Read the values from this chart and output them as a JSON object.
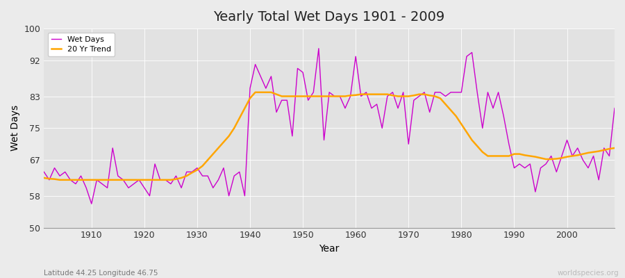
{
  "title": "Yearly Total Wet Days 1901 - 2009",
  "xlabel": "Year",
  "ylabel": "Wet Days",
  "subtitle_left": "Latitude 44.25 Longitude 46.75",
  "watermark": "worldspecies.org",
  "ylim": [
    50,
    100
  ],
  "yticks": [
    50,
    58,
    67,
    75,
    83,
    92,
    100
  ],
  "line_color": "#cc00cc",
  "trend_color": "#FFA500",
  "fig_bg_color": "#f0f0f0",
  "plot_bg_color": "#e8e8e8",
  "years": [
    1901,
    1902,
    1903,
    1904,
    1905,
    1906,
    1907,
    1908,
    1909,
    1910,
    1911,
    1912,
    1913,
    1914,
    1915,
    1916,
    1917,
    1918,
    1919,
    1920,
    1921,
    1922,
    1923,
    1924,
    1925,
    1926,
    1927,
    1928,
    1929,
    1930,
    1931,
    1932,
    1933,
    1934,
    1935,
    1936,
    1937,
    1938,
    1939,
    1940,
    1941,
    1942,
    1943,
    1944,
    1945,
    1946,
    1947,
    1948,
    1949,
    1950,
    1951,
    1952,
    1953,
    1954,
    1955,
    1956,
    1957,
    1958,
    1959,
    1960,
    1961,
    1962,
    1963,
    1964,
    1965,
    1966,
    1967,
    1968,
    1969,
    1970,
    1971,
    1972,
    1973,
    1974,
    1975,
    1976,
    1977,
    1978,
    1979,
    1980,
    1981,
    1982,
    1983,
    1984,
    1985,
    1986,
    1987,
    1988,
    1989,
    1990,
    1991,
    1992,
    1993,
    1994,
    1995,
    1996,
    1997,
    1998,
    1999,
    2000,
    2001,
    2002,
    2003,
    2004,
    2005,
    2006,
    2007,
    2008,
    2009
  ],
  "wet_days": [
    64,
    62,
    65,
    63,
    64,
    62,
    61,
    63,
    60,
    56,
    62,
    61,
    60,
    70,
    63,
    62,
    60,
    61,
    62,
    60,
    58,
    66,
    62,
    62,
    61,
    63,
    60,
    64,
    64,
    65,
    63,
    63,
    60,
    62,
    65,
    58,
    63,
    64,
    58,
    85,
    91,
    88,
    85,
    88,
    79,
    82,
    82,
    73,
    90,
    89,
    82,
    84,
    95,
    72,
    84,
    83,
    83,
    80,
    83,
    93,
    83,
    84,
    80,
    81,
    75,
    83,
    84,
    80,
    84,
    71,
    82,
    83,
    84,
    79,
    84,
    84,
    83,
    84,
    84,
    84,
    93,
    94,
    84,
    75,
    84,
    80,
    84,
    78,
    71,
    65,
    66,
    65,
    66,
    59,
    65,
    66,
    68,
    64,
    68,
    72,
    68,
    70,
    67,
    65,
    68,
    62,
    70,
    68,
    80
  ],
  "trend_years": [
    1901,
    1902,
    1903,
    1904,
    1905,
    1906,
    1907,
    1908,
    1909,
    1910,
    1911,
    1912,
    1913,
    1914,
    1915,
    1916,
    1917,
    1918,
    1919,
    1920,
    1921,
    1922,
    1923,
    1924,
    1925,
    1926,
    1927,
    1928,
    1929,
    1930,
    1931,
    1932,
    1933,
    1934,
    1935,
    1936,
    1937,
    1938,
    1939,
    1940,
    1941,
    1942,
    1943,
    1944,
    1945,
    1946,
    1947,
    1948,
    1949,
    1950,
    1951,
    1952,
    1953,
    1954,
    1955,
    1956,
    1957,
    1958,
    1959,
    1960,
    1961,
    1962,
    1963,
    1964,
    1965,
    1966,
    1967,
    1968,
    1969,
    1970,
    1971,
    1972,
    1973,
    1974,
    1975,
    1976,
    1977,
    1978,
    1979,
    1980,
    1981,
    1982,
    1983,
    1984,
    1985,
    1986,
    1987,
    1988,
    1989,
    1990,
    1991,
    1992,
    1993,
    1994,
    1995,
    1996,
    1997,
    1998,
    1999,
    2000,
    2001,
    2002,
    2003,
    2004,
    2005,
    2006,
    2007,
    2008,
    2009
  ],
  "trend_values": [
    62.5,
    62.3,
    62.2,
    62.0,
    62.0,
    62.0,
    62.0,
    62.0,
    62.0,
    62.0,
    62.0,
    62.0,
    62.0,
    62.0,
    62.0,
    62.0,
    62.0,
    62.0,
    62.0,
    62.0,
    62.0,
    62.0,
    62.0,
    62.0,
    62.0,
    62.2,
    62.5,
    63.0,
    63.8,
    64.5,
    65.5,
    67.0,
    68.5,
    70.0,
    71.5,
    73.0,
    75.0,
    77.5,
    80.0,
    82.5,
    84.0,
    84.0,
    84.0,
    84.0,
    83.5,
    83.0,
    83.0,
    83.0,
    83.0,
    83.0,
    83.0,
    83.0,
    83.0,
    83.0,
    83.0,
    83.0,
    83.0,
    83.0,
    83.2,
    83.3,
    83.5,
    83.5,
    83.5,
    83.5,
    83.5,
    83.5,
    83.2,
    83.0,
    83.0,
    83.0,
    83.2,
    83.5,
    83.5,
    83.2,
    83.0,
    82.5,
    81.0,
    79.5,
    78.0,
    76.0,
    74.0,
    72.0,
    70.5,
    69.0,
    68.0,
    68.0,
    68.0,
    68.0,
    68.0,
    68.5,
    68.5,
    68.2,
    68.0,
    67.8,
    67.5,
    67.2,
    67.2,
    67.3,
    67.5,
    67.8,
    68.0,
    68.2,
    68.5,
    68.8,
    69.0,
    69.2,
    69.5,
    69.8,
    70.0
  ]
}
